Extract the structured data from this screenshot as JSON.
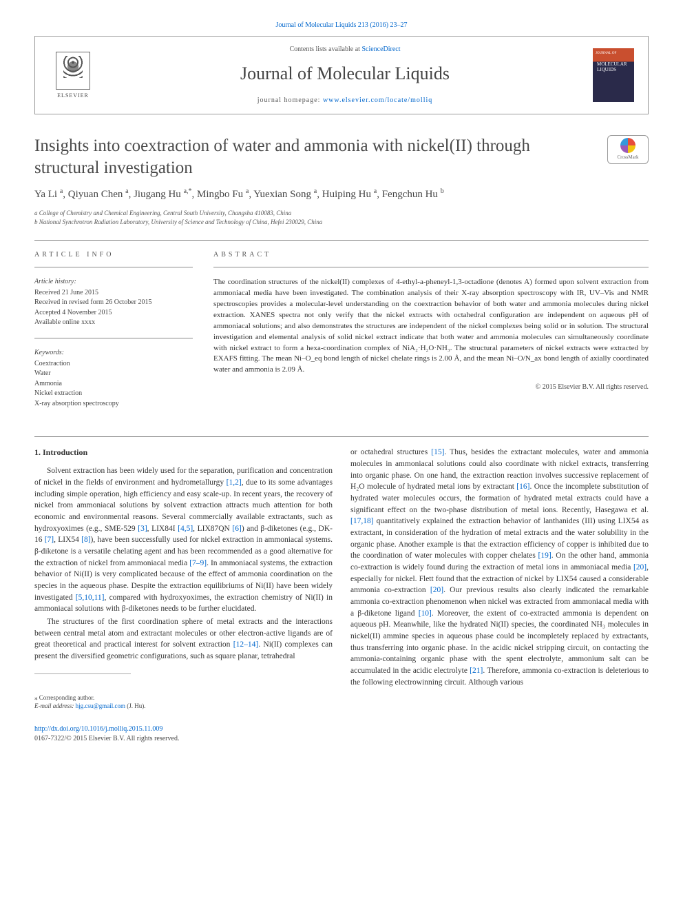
{
  "journal_ref_link": "Journal of Molecular Liquids 213 (2016) 23–27",
  "header": {
    "contents_prefix": "Contents lists available at ",
    "contents_link": "ScienceDirect",
    "journal_name": "Journal of Molecular Liquids",
    "homepage_prefix": "journal homepage: ",
    "homepage_link": "www.elsevier.com/locate/molliq",
    "elsevier_label": "ELSEVIER",
    "cover_label": "JOURNAL OF",
    "cover_title": "MOLECULAR LIQUIDS"
  },
  "crossmark_label": "CrossMark",
  "title": "Insights into coextraction of water and ammonia with nickel(II) through structural investigation",
  "authors_html": "Ya Li <sup>a</sup>, Qiyuan Chen <sup>a</sup>, Jiugang Hu <sup>a,*</sup>, Mingbo Fu <sup>a</sup>, Yuexian Song <sup>a</sup>, Huiping Hu <sup>a</sup>, Fengchun Hu <sup>b</sup>",
  "affiliations": {
    "a": "a  College of Chemistry and Chemical Engineering, Central South University, Changsha 410083, China",
    "b": "b  National Synchrotron Radiation Laboratory, University of Science and Technology of China, Hefei 230029, China"
  },
  "info": {
    "heading": "article info",
    "history_label": "Article history:",
    "received": "Received 21 June 2015",
    "revised": "Received in revised form 26 October 2015",
    "accepted": "Accepted 4 November 2015",
    "online": "Available online xxxx",
    "keywords_label": "Keywords:",
    "keywords": [
      "Coextraction",
      "Water",
      "Ammonia",
      "Nickel extraction",
      "X-ray absorption spectroscopy"
    ]
  },
  "abstract": {
    "heading": "abstract",
    "text": "The coordination structures of the nickel(II) complexes of 4-ethyl-a-pheneyl-1,3-octadione (denotes A) formed upon solvent extraction from ammoniacal media have been investigated. The combination analysis of their X-ray absorption spectroscopy with IR, UV–Vis and NMR spectroscopies provides a molecular-level understanding on the coextraction behavior of both water and ammonia molecules during nickel extraction. XANES spectra not only verify that the nickel extracts with octahedral configuration are independent on aqueous pH of ammoniacal solutions; and also demonstrates the structures are independent of the nickel complexes being solid or in solution. The structural investigation and elemental analysis of solid nickel extract indicate that both water and ammonia molecules can simultaneously coordinate with nickel extract to form a hexa-coordination complex of NiA₂·H₂O·NH₃. The structural parameters of nickel extracts were extracted by EXAFS fitting. The mean Ni–O_eq bond length of nickel chelate rings is 2.00 Å, and the mean Ni–O/N_ax bond length of axially coordinated water and ammonia is 2.09 Å.",
    "copyright": "© 2015 Elsevier B.V. All rights reserved."
  },
  "body": {
    "section_heading": "1. Introduction",
    "para1_pre": "Solvent extraction has been widely used for the separation, purification and concentration of nickel in the fields of environment and hydrometallurgy ",
    "ref_1_2": "[1,2]",
    "para1_mid1": ", due to its some advantages including simple operation, high efficiency and easy scale-up. In recent years, the recovery of nickel from ammoniacal solutions by solvent extraction attracts much attention for both economic and environmental reasons. Several commercially available extractants, such as hydroxyoximes (e.g., SME-529 ",
    "ref_3": "[3]",
    "para1_mid2": ", LIX84I ",
    "ref_4_5": "[4,5]",
    "para1_mid3": ", LIX87QN ",
    "ref_6": "[6]",
    "para1_mid4": ") and β-diketones (e.g., DK-16 ",
    "ref_7": "[7]",
    "para1_mid5": ", LIX54 ",
    "ref_8": "[8]",
    "para1_mid6": "), have been successfully used for nickel extraction in ammoniacal systems. β-diketone is a versatile chelating agent and has been recommended as a good alternative for the extraction of nickel from ammoniacal media ",
    "ref_7_9": "[7–9]",
    "para1_mid7": ". In ammoniacal systems, the extraction behavior of Ni(II) is very complicated because of the effect of ammonia coordination on the species in the aqueous phase. Despite the extraction equilibriums of Ni(II) have been widely investigated ",
    "ref_5_10_11": "[5,10,11]",
    "para1_end": ", compared with hydroxyoximes, the extraction chemistry of Ni(II) in ammoniacal solutions with β-diketones needs to be further elucidated.",
    "para2_pre": "The structures of the first coordination sphere of metal extracts and the interactions between central metal atom and extractant molecules or other electron-active ligands are of great theoretical and practical interest for solvent extraction ",
    "ref_12_14": "[12–14]",
    "para2_end": ". Ni(II) complexes can present the diversified geometric configurations, such as square planar, tetrahedral",
    "col2_pre": "or octahedral structures ",
    "ref_15": "[15]",
    "col2_mid1": ". Thus, besides the extractant molecules, water and ammonia molecules in ammoniacal solutions could also coordinate with nickel extracts, transferring into organic phase. On one hand, the extraction reaction involves successive replacement of H₂O molecule of hydrated metal ions by extractant ",
    "ref_16": "[16]",
    "col2_mid2": ". Once the incomplete substitution of hydrated water molecules occurs, the formation of hydrated metal extracts could have a significant effect on the two-phase distribution of metal ions. Recently, Hasegawa et al. ",
    "ref_17_18": "[17,18]",
    "col2_mid3": " quantitatively explained the extraction behavior of lanthanides (III) using LIX54 as extractant, in consideration of the hydration of metal extracts and the water solubility in the organic phase. Another example is that the extraction efficiency of copper is inhibited due to the coordination of water molecules with copper chelates ",
    "ref_19": "[19]",
    "col2_mid4": ". On the other hand, ammonia co-extraction is widely found during the extraction of metal ions in ammoniacal media ",
    "ref_20": "[20]",
    "col2_mid5": ", especially for nickel. Flett found that the extraction of nickel by LIX54 caused a considerable ammonia co-extraction ",
    "ref_20b": "[20]",
    "col2_mid6": ". Our previous results also clearly indicated the remarkable ammonia co-extraction phenomenon when nickel was extracted from ammoniacal media with a β-diketone ligand ",
    "ref_10": "[10]",
    "col2_mid7": ". Moreover, the extent of co-extracted ammonia is dependent on aqueous pH. Meanwhile, like the hydrated Ni(II) species, the coordinated NH₃ molecules in nickel(II) ammine species in aqueous phase could be incompletely replaced by extractants, thus transferring into organic phase. In the acidic nickel stripping circuit, on contacting the ammonia-containing organic phase with the spent electrolyte, ammonium salt can be accumulated in the acidic electrolyte ",
    "ref_21": "[21]",
    "col2_end": ". Therefore, ammonia co-extraction is deleterious to the following electrowinning circuit. Although various"
  },
  "footnote": {
    "corr": "⁎ Corresponding author.",
    "email_label": "E-mail address: ",
    "email": "hjg.csu@gmail.com",
    "email_suffix": " (J. Hu)."
  },
  "footer": {
    "doi": "http://dx.doi.org/10.1016/j.molliq.2015.11.009",
    "copyright": "0167-7322/© 2015 Elsevier B.V. All rights reserved."
  },
  "colors": {
    "link": "#0066cc",
    "text": "#333333",
    "muted": "#555555",
    "cover_top": "#c94f2f",
    "cover_bottom": "#2a2a4a"
  }
}
